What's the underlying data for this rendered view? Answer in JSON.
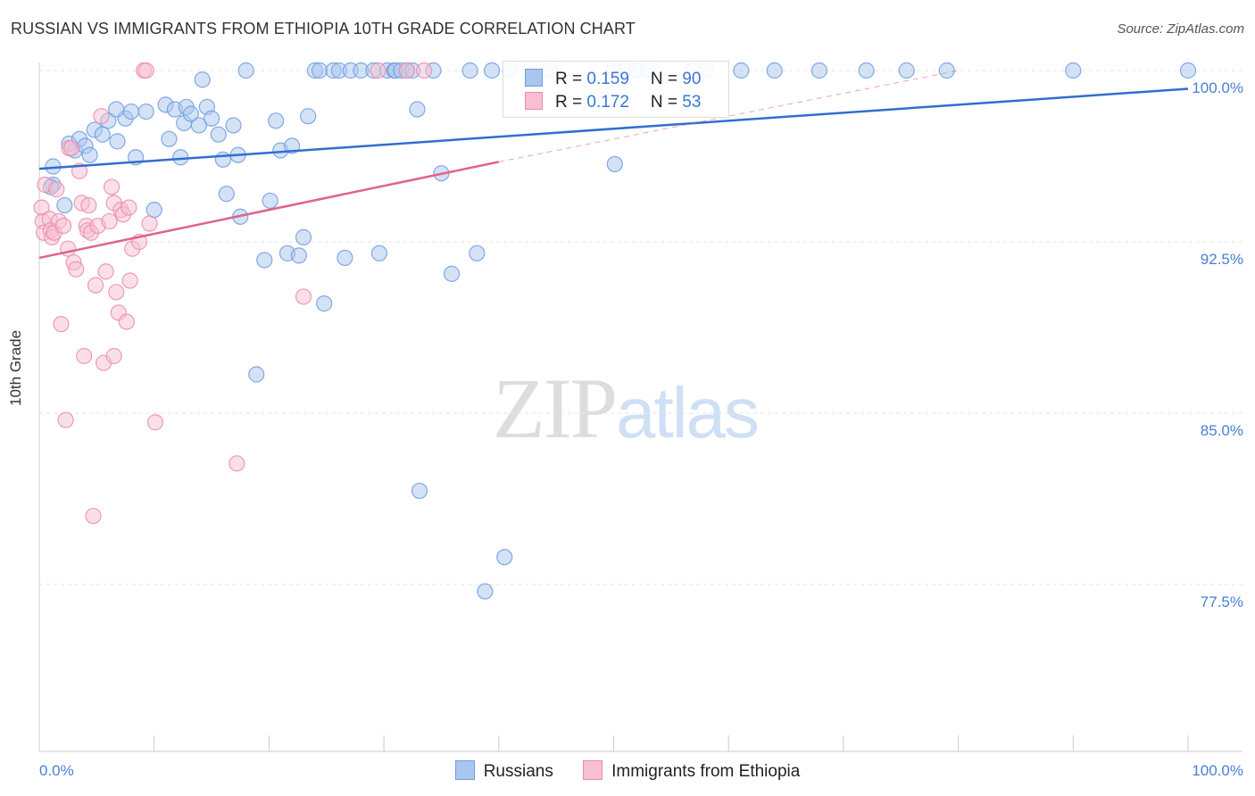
{
  "header": {
    "title": "RUSSIAN VS IMMIGRANTS FROM ETHIOPIA 10TH GRADE CORRELATION CHART",
    "source": "Source: ZipAtlas.com"
  },
  "watermark": {
    "zip": "ZIP",
    "atlas": "atlas"
  },
  "legend": {
    "rows": [
      {
        "r_label": "R = ",
        "r_value": "0.159",
        "n_label": "N = ",
        "n_value": "90",
        "color": "#a9c6ee",
        "border": "#6f9be0"
      },
      {
        "r_label": "R = ",
        "r_value": "0.172",
        "n_label": "N = ",
        "n_value": "53",
        "color": "#f7bfd1",
        "border": "#e98bab"
      }
    ]
  },
  "bottom_legend": [
    {
      "label": "Russians",
      "color": "#a9c6ee",
      "border": "#6f9be0"
    },
    {
      "label": "Immigrants from Ethiopia",
      "color": "#f7bfd1",
      "border": "#e98bab"
    }
  ],
  "chart_data": {
    "type": "scatter",
    "title": "RUSSIAN VS IMMIGRANTS FROM ETHIOPIA 10TH GRADE CORRELATION CHART",
    "xlabel": "",
    "ylabel": "10th Grade",
    "xlim": [
      0,
      100
    ],
    "ylim": [
      70.0,
      100.7
    ],
    "x_tick_labels": [
      "0.0%",
      "100.0%"
    ],
    "y_ticks": [
      100.0,
      92.5,
      85.0,
      77.5
    ],
    "y_tick_labels": [
      "100.0%",
      "92.5%",
      "85.0%",
      "77.5%"
    ],
    "grid": true,
    "series": [
      {
        "name": "Russians",
        "color": "#6f9be0",
        "fill": "#a9c6ee",
        "trend": {
          "x": [
            0,
            100
          ],
          "y": [
            95.7,
            99.2
          ],
          "color": "#2f6fd0"
        },
        "points": [
          [
            1.2,
            95.8
          ],
          [
            1.2,
            95.0
          ],
          [
            1.0,
            94.9
          ],
          [
            2.2,
            94.1
          ],
          [
            2.6,
            96.8
          ],
          [
            3.1,
            96.5
          ],
          [
            3.5,
            97.0
          ],
          [
            4.0,
            96.7
          ],
          [
            4.4,
            96.3
          ],
          [
            4.8,
            97.4
          ],
          [
            5.5,
            97.2
          ],
          [
            6.0,
            97.8
          ],
          [
            6.8,
            96.9
          ],
          [
            7.5,
            97.9
          ],
          [
            6.7,
            98.3
          ],
          [
            8.0,
            98.2
          ],
          [
            8.4,
            96.2
          ],
          [
            9.3,
            98.2
          ],
          [
            10.0,
            93.9
          ],
          [
            11.0,
            98.5
          ],
          [
            11.3,
            97.0
          ],
          [
            11.8,
            98.3
          ],
          [
            12.3,
            96.2
          ],
          [
            12.6,
            97.7
          ],
          [
            12.8,
            98.4
          ],
          [
            13.2,
            98.1
          ],
          [
            13.9,
            97.6
          ],
          [
            14.2,
            99.6
          ],
          [
            14.6,
            98.4
          ],
          [
            15.0,
            97.9
          ],
          [
            15.6,
            97.2
          ],
          [
            16.0,
            96.1
          ],
          [
            16.3,
            94.6
          ],
          [
            16.9,
            97.6
          ],
          [
            17.3,
            96.3
          ],
          [
            17.5,
            93.6
          ],
          [
            18.0,
            100.0
          ],
          [
            18.9,
            86.7
          ],
          [
            19.6,
            91.7
          ],
          [
            20.1,
            94.3
          ],
          [
            20.6,
            97.8
          ],
          [
            21.0,
            96.5
          ],
          [
            21.6,
            92.0
          ],
          [
            22.0,
            96.7
          ],
          [
            22.6,
            91.9
          ],
          [
            23.0,
            92.7
          ],
          [
            23.4,
            98.0
          ],
          [
            24.0,
            100.0
          ],
          [
            24.4,
            100.0
          ],
          [
            24.8,
            89.8
          ],
          [
            25.6,
            100.0
          ],
          [
            26.1,
            100.0
          ],
          [
            26.6,
            91.8
          ],
          [
            27.1,
            100.0
          ],
          [
            28.0,
            100.0
          ],
          [
            29.1,
            100.0
          ],
          [
            29.6,
            92.0
          ],
          [
            30.3,
            100.0
          ],
          [
            30.9,
            100.0
          ],
          [
            31.0,
            100.0
          ],
          [
            31.5,
            100.0
          ],
          [
            32.0,
            100.0
          ],
          [
            32.5,
            100.0
          ],
          [
            32.9,
            98.3
          ],
          [
            33.1,
            81.6
          ],
          [
            34.3,
            100.0
          ],
          [
            35.0,
            95.5
          ],
          [
            35.9,
            91.1
          ],
          [
            37.5,
            100.0
          ],
          [
            38.1,
            92.0
          ],
          [
            38.8,
            77.2
          ],
          [
            39.4,
            100.0
          ],
          [
            40.5,
            78.7
          ],
          [
            41.0,
            100.0
          ],
          [
            44.5,
            100.0
          ],
          [
            50.0,
            100.0
          ],
          [
            50.1,
            95.9
          ],
          [
            51.0,
            100.0
          ],
          [
            52.0,
            100.0
          ],
          [
            53.0,
            100.0
          ],
          [
            56.9,
            100.0
          ],
          [
            58.0,
            100.0
          ],
          [
            61.1,
            100.0
          ],
          [
            64.0,
            100.0
          ],
          [
            67.9,
            100.0
          ],
          [
            72.0,
            100.0
          ],
          [
            75.5,
            100.0
          ],
          [
            79.0,
            100.0
          ],
          [
            90.0,
            100.0
          ],
          [
            100.0,
            100.0
          ]
        ]
      },
      {
        "name": "Immigrants from Ethiopia",
        "color": "#e98bab",
        "fill": "#f7bfd1",
        "trend": {
          "x": [
            0,
            40
          ],
          "y": [
            91.8,
            96.0
          ],
          "color": "#e0628f"
        },
        "trend_extension": {
          "x": [
            40,
            80
          ],
          "y": [
            96.0,
            100.0
          ]
        },
        "points": [
          [
            0.2,
            94.0
          ],
          [
            0.3,
            93.4
          ],
          [
            0.4,
            92.9
          ],
          [
            0.5,
            95.0
          ],
          [
            0.9,
            93.5
          ],
          [
            1.0,
            93.0
          ],
          [
            1.1,
            92.7
          ],
          [
            1.3,
            92.9
          ],
          [
            1.5,
            94.8
          ],
          [
            1.7,
            93.4
          ],
          [
            1.9,
            88.9
          ],
          [
            2.1,
            93.2
          ],
          [
            2.3,
            84.7
          ],
          [
            2.5,
            92.2
          ],
          [
            2.6,
            96.6
          ],
          [
            2.8,
            96.6
          ],
          [
            3.0,
            91.6
          ],
          [
            3.2,
            91.3
          ],
          [
            3.5,
            95.6
          ],
          [
            3.7,
            94.2
          ],
          [
            3.9,
            87.5
          ],
          [
            4.1,
            93.2
          ],
          [
            4.2,
            93.0
          ],
          [
            4.3,
            94.1
          ],
          [
            4.5,
            92.9
          ],
          [
            4.7,
            80.5
          ],
          [
            4.9,
            90.6
          ],
          [
            5.1,
            93.2
          ],
          [
            5.4,
            98.0
          ],
          [
            5.6,
            87.2
          ],
          [
            5.8,
            91.2
          ],
          [
            6.1,
            93.4
          ],
          [
            6.3,
            94.9
          ],
          [
            6.5,
            94.2
          ],
          [
            6.5,
            87.5
          ],
          [
            6.7,
            90.3
          ],
          [
            6.9,
            89.4
          ],
          [
            7.1,
            93.9
          ],
          [
            7.3,
            93.7
          ],
          [
            7.6,
            89.0
          ],
          [
            7.8,
            94.0
          ],
          [
            7.9,
            90.8
          ],
          [
            8.1,
            92.2
          ],
          [
            8.7,
            92.5
          ],
          [
            9.1,
            100.0
          ],
          [
            9.3,
            100.0
          ],
          [
            9.6,
            93.3
          ],
          [
            10.1,
            84.6
          ],
          [
            17.2,
            82.8
          ],
          [
            23.0,
            90.1
          ],
          [
            29.5,
            100.0
          ],
          [
            32.0,
            100.0
          ],
          [
            33.5,
            100.0
          ]
        ]
      }
    ]
  }
}
